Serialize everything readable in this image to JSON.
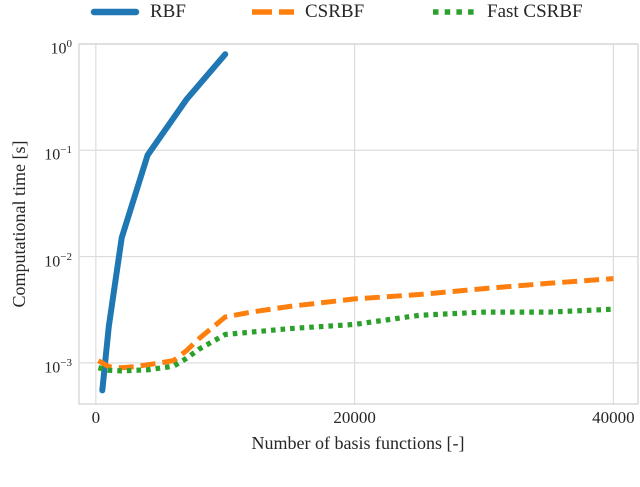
{
  "figure": {
    "background": "#ffffff",
    "text_color": "#262626",
    "grid_color": "#dcdcdc",
    "spine_color": "#d4d4d4"
  },
  "chart_data": {
    "type": "line",
    "title": "",
    "xlabel": "Number of basis functions [-]",
    "ylabel": "Computational time [s]",
    "x_scale": "linear",
    "y_scale": "log",
    "xlim": [
      -1300,
      41900
    ],
    "ylim": [
      0.00041,
      1.0
    ],
    "grid": true,
    "legend_position": "top-horizontal",
    "x_ticks": [
      {
        "value": 0,
        "label": "0"
      },
      {
        "value": 20000,
        "label": "20000"
      },
      {
        "value": 40000,
        "label": "40000"
      }
    ],
    "y_ticks": [
      {
        "value": 1,
        "base": "10",
        "exp": "0"
      },
      {
        "value": 0.1,
        "base": "10",
        "exp": "−1"
      },
      {
        "value": 0.01,
        "base": "10",
        "exp": "−2"
      },
      {
        "value": 0.001,
        "base": "10",
        "exp": "−3"
      }
    ],
    "series": [
      {
        "name": "RBF",
        "color": "#1f77b4",
        "style": "solid",
        "x": [
          500,
          1000,
          2000,
          4000,
          7000,
          10000
        ],
        "y": [
          0.00055,
          0.0022,
          0.015,
          0.09,
          0.3,
          0.8
        ]
      },
      {
        "name": "CSRBF",
        "color": "#ff7f0e",
        "style": "dashed",
        "x": [
          200,
          1000,
          2000,
          3000,
          5000,
          6000,
          7000,
          8000,
          10000,
          12000,
          15000,
          20000,
          25000,
          30000,
          35000,
          40000
        ],
        "y": [
          0.00105,
          0.00092,
          0.0009,
          0.00092,
          0.001,
          0.00105,
          0.0013,
          0.0017,
          0.0027,
          0.003,
          0.0034,
          0.004,
          0.0044,
          0.005,
          0.0056,
          0.0062
        ]
      },
      {
        "name": "Fast CSRBF",
        "color": "#2ca02c",
        "style": "dotted",
        "x": [
          200,
          1000,
          2000,
          4000,
          6000,
          7000,
          8000,
          10000,
          15000,
          20000,
          25000,
          30000,
          35000,
          40000
        ],
        "y": [
          0.0009,
          0.00085,
          0.00084,
          0.00086,
          0.00093,
          0.0011,
          0.00135,
          0.00185,
          0.0021,
          0.0023,
          0.0028,
          0.003,
          0.003,
          0.0032
        ]
      }
    ]
  }
}
